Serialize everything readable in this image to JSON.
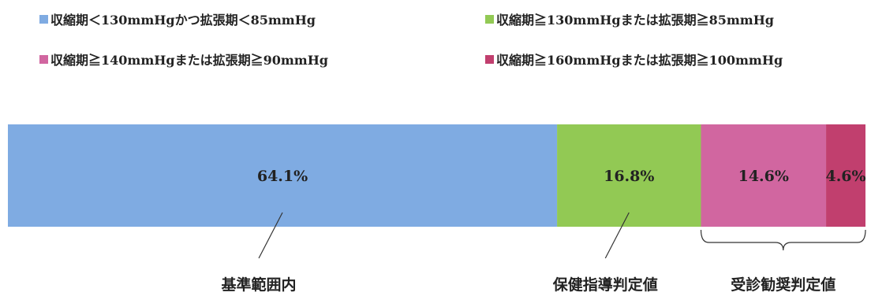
{
  "chart_data": {
    "type": "bar",
    "orientation": "horizontal-stacked-100",
    "series": [
      {
        "name": "収縮期＜130mmHgかつ拡張期＜85mmHg",
        "value": 64.1,
        "label": "64.1%",
        "color": "#7fabe2"
      },
      {
        "name": "収縮期≧130mmHgまたは拡張期≧85mmHg",
        "value": 16.8,
        "label": "16.8%",
        "color": "#92c954"
      },
      {
        "name": "収縮期≧140mmHgまたは拡張期≧90mmHg",
        "value": 14.6,
        "label": "14.6%",
        "color": "#d166a0"
      },
      {
        "name": "収縮期≧160mmHgまたは拡張期≧100mmHg",
        "value": 4.6,
        "label": "4.6%",
        "color": "#c13f6e"
      }
    ],
    "annotations": [
      {
        "text": "基準範囲内",
        "target": 0
      },
      {
        "text": "保健指導判定値",
        "target": 1
      },
      {
        "text": "受診勧奨判定値",
        "range": [
          2,
          3
        ]
      }
    ],
    "legend_position": "top"
  }
}
